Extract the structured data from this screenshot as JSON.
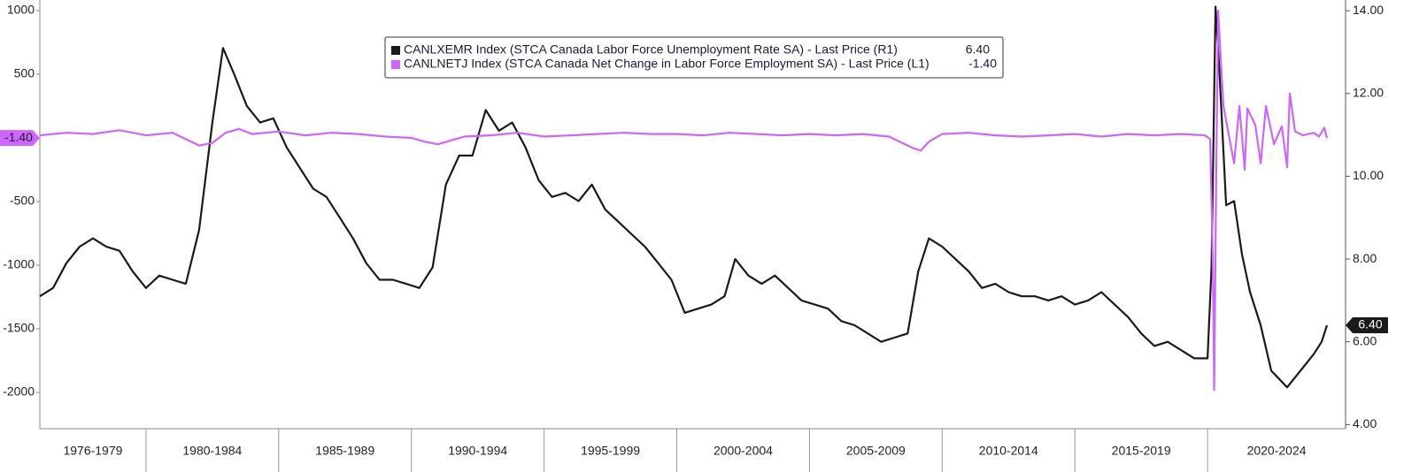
{
  "chart_data": {
    "type": "line",
    "xlim": [
      1976,
      2025.2
    ],
    "xticks": [
      {
        "value": 1976,
        "label": "1976-1979"
      },
      {
        "value": 1980,
        "label": "1980-1984"
      },
      {
        "value": 1985,
        "label": "1985-1989"
      },
      {
        "value": 1990,
        "label": "1990-1994"
      },
      {
        "value": 1995,
        "label": "1995-1999"
      },
      {
        "value": 2000,
        "label": "2000-2004"
      },
      {
        "value": 2005,
        "label": "2005-2009"
      },
      {
        "value": 2010,
        "label": "2010-2014"
      },
      {
        "value": 2015,
        "label": "2015-2019"
      },
      {
        "value": 2020,
        "label": "2020-2024"
      }
    ],
    "ylim": [
      -2285,
      1083
    ],
    "yticks": [
      1000,
      500,
      -500,
      -1000,
      -1500,
      -2000
    ],
    "y2lim": [
      3.9,
      14.26
    ],
    "y2ticks": [
      {
        "value": 14,
        "label": "14.00"
      },
      {
        "value": 12,
        "label": "12.00"
      },
      {
        "value": 10,
        "label": "10.00"
      },
      {
        "value": 8,
        "label": "8.00"
      },
      {
        "value": 6,
        "label": "6.00"
      },
      {
        "value": 4,
        "label": "4.00"
      }
    ],
    "series": [
      {
        "name": "CANLXEMR Index (STCA Canada Labor Force Unemployment Rate SA) - Last Price (R1)",
        "last_label": "6.40",
        "color": "#1a1a1a",
        "axis": "y2",
        "x": [
          1976,
          1976.5,
          1977,
          1977.5,
          1978,
          1978.5,
          1979,
          1979.5,
          1980,
          1980.5,
          1981,
          1981.5,
          1982,
          1982.5,
          1982.9,
          1983.3,
          1983.8,
          1984.3,
          1984.8,
          1985.3,
          1985.8,
          1986.3,
          1986.8,
          1987.3,
          1987.8,
          1988.3,
          1988.8,
          1989.3,
          1989.8,
          1990.3,
          1990.8,
          1991.3,
          1991.8,
          1992.3,
          1992.8,
          1993.3,
          1993.8,
          1994.3,
          1994.8,
          1995.3,
          1995.8,
          1996.3,
          1996.8,
          1997.3,
          1997.8,
          1998.3,
          1998.8,
          1999.3,
          1999.8,
          2000.3,
          2000.8,
          2001.3,
          2001.8,
          2002.2,
          2002.7,
          2003.2,
          2003.7,
          2004.2,
          2004.7,
          2005.2,
          2005.7,
          2006.2,
          2006.7,
          2007.2,
          2007.7,
          2008.2,
          2008.7,
          2009.1,
          2009.5,
          2010,
          2010.5,
          2011,
          2011.5,
          2012,
          2012.5,
          2013,
          2013.5,
          2014,
          2014.5,
          2015,
          2015.5,
          2016,
          2016.5,
          2017,
          2017.5,
          2018,
          2018.5,
          2019,
          2019.5,
          2020.0,
          2020.15,
          2020.3,
          2020.45,
          2020.7,
          2021,
          2021.3,
          2021.6,
          2022,
          2022.4,
          2022.7,
          2023,
          2023.5,
          2024,
          2024.3,
          2024.5
        ],
        "values": [
          7.1,
          7.3,
          7.9,
          8.3,
          8.5,
          8.3,
          8.2,
          7.7,
          7.3,
          7.6,
          7.5,
          7.4,
          8.7,
          11.3,
          13.1,
          12.5,
          11.7,
          11.3,
          11.4,
          10.7,
          10.2,
          9.7,
          9.5,
          9.0,
          8.5,
          7.9,
          7.5,
          7.5,
          7.4,
          7.3,
          7.8,
          9.8,
          10.5,
          10.5,
          11.6,
          11.1,
          11.3,
          10.7,
          9.9,
          9.5,
          9.6,
          9.4,
          9.8,
          9.2,
          8.9,
          8.6,
          8.3,
          7.9,
          7.5,
          6.7,
          6.8,
          6.9,
          7.1,
          8.0,
          7.6,
          7.4,
          7.6,
          7.3,
          7.0,
          6.9,
          6.8,
          6.5,
          6.4,
          6.2,
          6.0,
          6.1,
          6.2,
          7.7,
          8.5,
          8.3,
          8.0,
          7.7,
          7.3,
          7.4,
          7.2,
          7.1,
          7.1,
          7.0,
          7.1,
          6.9,
          7.0,
          7.2,
          6.9,
          6.6,
          6.2,
          5.9,
          6.0,
          5.8,
          5.6,
          5.6,
          7.8,
          14.1,
          12.5,
          9.3,
          9.4,
          8.1,
          7.2,
          6.4,
          5.3,
          5.1,
          4.9,
          5.3,
          5.7,
          6.0,
          6.4
        ]
      },
      {
        "name": "CANLNETJ Index (STCA Canada Net Change in Labor Force Employment SA) - Last Price (L1)",
        "last_label": "-1.40",
        "color": "#cc66ff",
        "axis": "y",
        "x": [
          1976,
          1977,
          1978,
          1979,
          1980,
          1981,
          1981.5,
          1982,
          1982.5,
          1983,
          1983.5,
          1984,
          1985,
          1986,
          1987,
          1988,
          1989,
          1990,
          1990.5,
          1991,
          1991.5,
          1992,
          1993,
          1994,
          1995,
          1996,
          1997,
          1998,
          1999,
          2000,
          2001,
          2002,
          2003,
          2004,
          2005,
          2006,
          2007,
          2008,
          2008.9,
          2009.2,
          2009.5,
          2010,
          2011,
          2012,
          2013,
          2014,
          2015,
          2016,
          2017,
          2018,
          2019,
          2019.9,
          2020.1,
          2020.2,
          2020.25,
          2020.33,
          2020.4,
          2020.5,
          2020.6,
          2020.75,
          2021,
          2021.2,
          2021.4,
          2021.5,
          2021.8,
          2022,
          2022.2,
          2022.5,
          2022.8,
          2023,
          2023.1,
          2023.3,
          2023.6,
          2024,
          2024.2,
          2024.4,
          2024.5
        ],
        "values": [
          20,
          40,
          30,
          60,
          20,
          40,
          -10,
          -60,
          -40,
          40,
          70,
          30,
          50,
          20,
          40,
          30,
          10,
          0,
          -30,
          -50,
          -20,
          10,
          20,
          40,
          10,
          20,
          30,
          40,
          30,
          30,
          20,
          40,
          30,
          20,
          30,
          20,
          30,
          10,
          -80,
          -100,
          -30,
          30,
          40,
          20,
          10,
          20,
          30,
          10,
          30,
          20,
          30,
          20,
          -10,
          -1000,
          -1980,
          -200,
          1000,
          600,
          250,
          80,
          -200,
          250,
          -250,
          230,
          100,
          -200,
          250,
          -50,
          90,
          -230,
          350,
          50,
          20,
          40,
          10,
          80,
          -1.4
        ]
      }
    ]
  }
}
